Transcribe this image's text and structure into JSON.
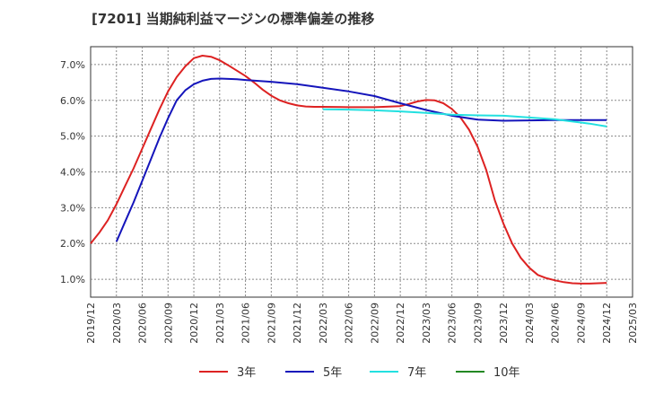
{
  "title": "[7201]  当期純利益マージンの標準偏差の推移",
  "chart_data": {
    "type": "line",
    "title": "[7201]  当期純利益マージンの標準偏差の推移",
    "xlabel": "",
    "ylabel": "",
    "ylim": [
      0.5,
      7.5
    ],
    "y_ticks": [
      "1.0%",
      "2.0%",
      "3.0%",
      "4.0%",
      "5.0%",
      "6.0%",
      "7.0%"
    ],
    "y_tick_values": [
      1.0,
      2.0,
      3.0,
      4.0,
      5.0,
      6.0,
      7.0
    ],
    "x_ticks": [
      "2019/12",
      "2020/03",
      "2020/06",
      "2020/09",
      "2020/12",
      "2021/03",
      "2021/06",
      "2021/09",
      "2021/12",
      "2022/03",
      "2022/06",
      "2022/09",
      "2022/12",
      "2023/03",
      "2023/06",
      "2023/09",
      "2023/12",
      "2024/03",
      "2024/06",
      "2024/09",
      "2024/12",
      "2025/03"
    ],
    "x_range": [
      "2019/12",
      "2025/03"
    ],
    "grid": true,
    "legend_position": "bottom",
    "series": [
      {
        "name": "3年",
        "color": "#dd2222",
        "x": [
          "2019/12",
          "2020/01",
          "2020/02",
          "2020/03",
          "2020/04",
          "2020/05",
          "2020/06",
          "2020/07",
          "2020/08",
          "2020/09",
          "2020/10",
          "2020/11",
          "2020/12",
          "2021/01",
          "2021/02",
          "2021/03",
          "2021/04",
          "2021/05",
          "2021/06",
          "2021/07",
          "2021/08",
          "2021/09",
          "2021/10",
          "2021/11",
          "2021/12",
          "2022/01",
          "2022/02",
          "2022/03",
          "2022/06",
          "2022/09",
          "2022/12",
          "2023/01",
          "2023/02",
          "2023/03",
          "2023/04",
          "2023/05",
          "2023/06",
          "2023/07",
          "2023/08",
          "2023/09",
          "2023/10",
          "2023/11",
          "2023/12",
          "2024/01",
          "2024/02",
          "2024/03",
          "2024/04",
          "2024/05",
          "2024/06",
          "2024/07",
          "2024/08",
          "2024/09",
          "2024/10",
          "2024/11",
          "2024/12"
        ],
        "values": [
          2.0,
          2.3,
          2.65,
          3.1,
          3.6,
          4.1,
          4.65,
          5.2,
          5.75,
          6.25,
          6.65,
          6.95,
          7.18,
          7.25,
          7.22,
          7.12,
          6.98,
          6.83,
          6.68,
          6.5,
          6.3,
          6.13,
          6.0,
          5.92,
          5.86,
          5.83,
          5.82,
          5.82,
          5.81,
          5.81,
          5.84,
          5.9,
          5.97,
          6.01,
          6.0,
          5.92,
          5.76,
          5.52,
          5.18,
          4.7,
          4.05,
          3.2,
          2.55,
          2.0,
          1.6,
          1.32,
          1.12,
          1.03,
          0.97,
          0.92,
          0.89,
          0.88,
          0.88,
          0.89,
          0.9
        ]
      },
      {
        "name": "5年",
        "color": "#1515bb",
        "x": [
          "2020/03",
          "2020/04",
          "2020/05",
          "2020/06",
          "2020/07",
          "2020/08",
          "2020/09",
          "2020/10",
          "2020/11",
          "2020/12",
          "2021/01",
          "2021/02",
          "2021/03",
          "2021/04",
          "2021/05",
          "2021/06",
          "2021/09",
          "2021/12",
          "2022/03",
          "2022/06",
          "2022/09",
          "2022/12",
          "2023/03",
          "2023/06",
          "2023/09",
          "2023/12",
          "2024/03",
          "2024/06",
          "2024/09",
          "2024/12"
        ],
        "values": [
          2.05,
          2.6,
          3.15,
          3.75,
          4.35,
          4.95,
          5.5,
          6.0,
          6.28,
          6.45,
          6.55,
          6.6,
          6.61,
          6.6,
          6.59,
          6.57,
          6.52,
          6.45,
          6.35,
          6.25,
          6.12,
          5.92,
          5.73,
          5.57,
          5.46,
          5.43,
          5.44,
          5.45,
          5.45,
          5.45
        ]
      },
      {
        "name": "7年",
        "color": "#22e0e0",
        "x": [
          "2022/03",
          "2022/06",
          "2022/09",
          "2022/12",
          "2023/03",
          "2023/06",
          "2023/09",
          "2023/12",
          "2024/03",
          "2024/06",
          "2024/09",
          "2024/10",
          "2024/11",
          "2024/12"
        ],
        "values": [
          5.75,
          5.74,
          5.72,
          5.69,
          5.65,
          5.6,
          5.58,
          5.57,
          5.52,
          5.47,
          5.38,
          5.35,
          5.31,
          5.27
        ]
      },
      {
        "name": "10年",
        "color": "#228822",
        "x": [],
        "values": []
      }
    ]
  }
}
